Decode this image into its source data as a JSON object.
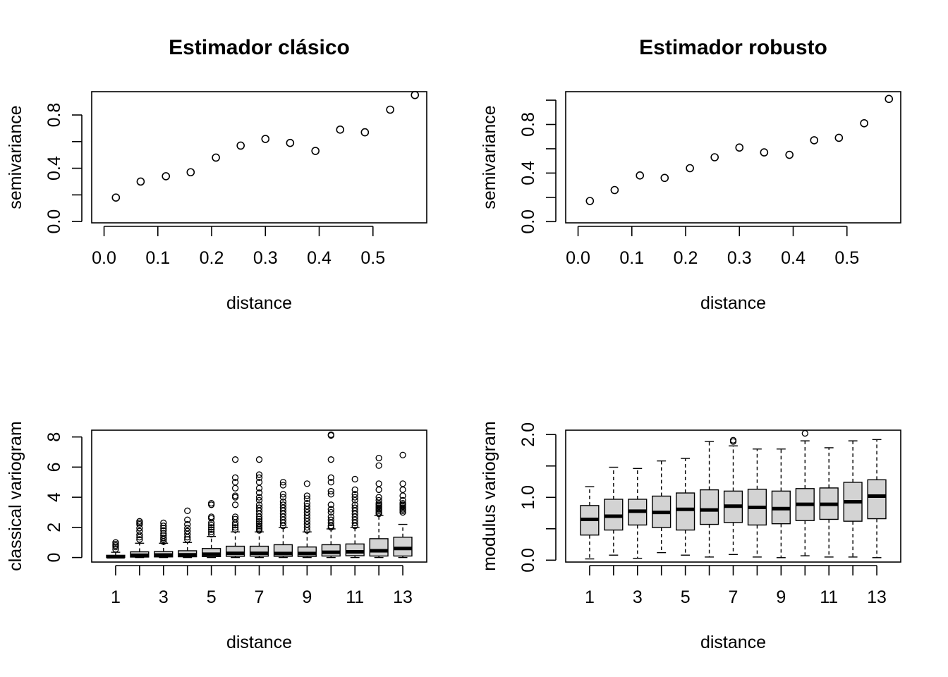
{
  "chart_data": [
    {
      "type": "scatter",
      "title": "Estimador clásico",
      "xlabel": "distance",
      "ylabel": "semivariance",
      "xlim": [
        -0.023,
        0.6
      ],
      "ylim": [
        -0.01,
        0.975
      ],
      "x_ticks": [
        0.0,
        0.1,
        0.2,
        0.3,
        0.4,
        0.5
      ],
      "y_ticks": [
        0.0,
        0.2,
        0.4,
        0.6,
        0.8
      ],
      "y_tick_labels": [
        "0.0",
        "",
        "0.4",
        "",
        "0.8"
      ],
      "x": [
        0.022,
        0.068,
        0.115,
        0.161,
        0.208,
        0.254,
        0.3,
        0.346,
        0.393,
        0.439,
        0.485,
        0.532,
        0.578
      ],
      "y": [
        0.18,
        0.3,
        0.34,
        0.37,
        0.48,
        0.57,
        0.62,
        0.59,
        0.53,
        0.69,
        0.67,
        0.84,
        0.95
      ]
    },
    {
      "type": "scatter",
      "title": "Estimador robusto",
      "xlabel": "distance",
      "ylabel": "semivariance",
      "xlim": [
        -0.023,
        0.6
      ],
      "ylim": [
        -0.01,
        1.07
      ],
      "x_ticks": [
        0.0,
        0.1,
        0.2,
        0.3,
        0.4,
        0.5
      ],
      "y_ticks": [
        0.0,
        0.2,
        0.4,
        0.6,
        0.8,
        1.0
      ],
      "y_tick_labels": [
        "0.0",
        "",
        "0.4",
        "",
        "0.8",
        ""
      ],
      "x": [
        0.022,
        0.068,
        0.115,
        0.161,
        0.208,
        0.254,
        0.3,
        0.346,
        0.393,
        0.439,
        0.485,
        0.532,
        0.578
      ],
      "y": [
        0.17,
        0.26,
        0.38,
        0.36,
        0.44,
        0.53,
        0.61,
        0.57,
        0.55,
        0.67,
        0.69,
        0.81,
        1.01
      ]
    },
    {
      "type": "boxplot",
      "title": "",
      "xlabel": "distance",
      "ylabel": "classical variogram",
      "xlim": [
        0,
        14
      ],
      "ylim": [
        -0.3,
        8.45
      ],
      "x_tick_labels": [
        "1",
        "3",
        "5",
        "7",
        "9",
        "11",
        "13"
      ],
      "y_ticks": [
        0,
        2,
        4,
        6,
        8
      ],
      "boxes": [
        {
          "x": 1,
          "q1": 0.01,
          "med": 0.05,
          "q3": 0.15,
          "lo": 0.0,
          "hi": 0.35,
          "outliers": [
            0.55,
            0.7,
            0.8,
            0.9,
            1.0
          ]
        },
        {
          "x": 2,
          "q1": 0.03,
          "med": 0.15,
          "q3": 0.38,
          "lo": 0.0,
          "hi": 0.95,
          "outliers": [
            1.2,
            1.35,
            1.5,
            1.75,
            1.95,
            2.2,
            2.3,
            2.4
          ]
        },
        {
          "x": 3,
          "q1": 0.04,
          "med": 0.17,
          "q3": 0.4,
          "lo": 0.0,
          "hi": 0.95,
          "outliers": [
            1.05,
            1.2,
            1.3,
            1.45,
            1.6,
            1.8,
            1.95,
            2.1,
            2.3
          ]
        },
        {
          "x": 4,
          "q1": 0.05,
          "med": 0.18,
          "q3": 0.45,
          "lo": 0.0,
          "hi": 1.0,
          "outliers": [
            1.2,
            1.35,
            1.55,
            1.75,
            1.95,
            2.2,
            2.5,
            3.1
          ]
        },
        {
          "x": 5,
          "q1": 0.06,
          "med": 0.22,
          "q3": 0.6,
          "lo": 0.0,
          "hi": 1.4,
          "outliers": [
            1.55,
            1.7,
            1.85,
            2.0,
            2.15,
            2.3,
            2.6,
            2.7,
            3.5,
            3.6
          ]
        },
        {
          "x": 6,
          "q1": 0.08,
          "med": 0.28,
          "q3": 0.75,
          "lo": 0.0,
          "hi": 1.7,
          "outliers": [
            1.85,
            2.0,
            2.15,
            2.3,
            2.55,
            2.7,
            3.5,
            4.0,
            4.1,
            4.6,
            5.0,
            5.3,
            6.5
          ]
        },
        {
          "x": 7,
          "q1": 0.09,
          "med": 0.28,
          "q3": 0.75,
          "lo": 0.0,
          "hi": 1.7,
          "outliers": [
            1.8,
            1.9,
            2.0,
            2.1,
            2.25,
            2.4,
            2.55,
            2.7,
            2.9,
            3.1,
            3.3,
            3.5,
            3.8,
            4.0,
            4.3,
            4.6,
            5.0,
            5.3,
            5.5,
            6.5
          ]
        },
        {
          "x": 8,
          "q1": 0.08,
          "med": 0.27,
          "q3": 0.85,
          "lo": 0.0,
          "hi": 2.0,
          "outliers": [
            2.1,
            2.3,
            2.5,
            2.7,
            2.9,
            3.1,
            3.3,
            3.5,
            3.7,
            4.0,
            4.2,
            4.8,
            5.0
          ]
        },
        {
          "x": 9,
          "q1": 0.07,
          "med": 0.27,
          "q3": 0.7,
          "lo": 0.0,
          "hi": 1.7,
          "outliers": [
            1.8,
            2.0,
            2.2,
            2.4,
            2.6,
            2.8,
            3.0,
            3.2,
            3.4,
            3.6,
            3.9,
            4.1,
            4.9
          ]
        },
        {
          "x": 10,
          "q1": 0.1,
          "med": 0.35,
          "q3": 0.85,
          "lo": 0.0,
          "hi": 1.9,
          "outliers": [
            2.0,
            2.1,
            2.3,
            2.5,
            2.7,
            3.0,
            3.2,
            3.5,
            4.2,
            4.4,
            5.0,
            5.3,
            6.5,
            8.1,
            8.15
          ]
        },
        {
          "x": 11,
          "q1": 0.12,
          "med": 0.38,
          "q3": 0.9,
          "lo": 0.0,
          "hi": 2.0,
          "outliers": [
            2.1,
            2.3,
            2.5,
            2.7,
            2.9,
            3.1,
            3.3,
            3.5,
            3.8,
            4.0,
            4.2,
            4.5,
            5.2
          ]
        },
        {
          "x": 12,
          "q1": 0.1,
          "med": 0.45,
          "q3": 1.25,
          "lo": 0.0,
          "hi": 2.8,
          "outliers": [
            2.9,
            3.0,
            3.1,
            3.2,
            3.3,
            3.4,
            3.5,
            3.6,
            3.8,
            4.0,
            4.5,
            4.9,
            6.1,
            6.6
          ]
        },
        {
          "x": 13,
          "q1": 0.1,
          "med": 0.6,
          "q3": 1.35,
          "lo": 0.0,
          "hi": 2.2,
          "outliers": [
            3.0,
            3.1,
            3.2,
            3.3,
            3.4,
            3.5,
            3.6,
            3.8,
            4.1,
            4.5,
            4.9,
            6.8
          ]
        }
      ]
    },
    {
      "type": "boxplot",
      "title": "",
      "xlabel": "distance",
      "ylabel": "modulus variogram",
      "xlim": [
        0,
        14
      ],
      "ylim": [
        -0.03,
        2.07
      ],
      "x_tick_labels": [
        "1",
        "3",
        "5",
        "7",
        "9",
        "11",
        "13"
      ],
      "y_ticks": [
        0.0,
        0.5,
        1.0,
        1.5,
        2.0
      ],
      "y_tick_labels": [
        "0.0",
        "",
        "1.0",
        "",
        "2.0"
      ],
      "boxes": [
        {
          "x": 1,
          "q1": 0.4,
          "med": 0.65,
          "q3": 0.87,
          "lo": 0.02,
          "hi": 1.17,
          "outliers": []
        },
        {
          "x": 2,
          "q1": 0.48,
          "med": 0.7,
          "q3": 0.97,
          "lo": 0.08,
          "hi": 1.48,
          "outliers": []
        },
        {
          "x": 3,
          "q1": 0.56,
          "med": 0.78,
          "q3": 0.97,
          "lo": 0.03,
          "hi": 1.46,
          "outliers": []
        },
        {
          "x": 4,
          "q1": 0.52,
          "med": 0.76,
          "q3": 1.02,
          "lo": 0.12,
          "hi": 1.58,
          "outliers": []
        },
        {
          "x": 5,
          "q1": 0.48,
          "med": 0.81,
          "q3": 1.07,
          "lo": 0.08,
          "hi": 1.62,
          "outliers": []
        },
        {
          "x": 6,
          "q1": 0.57,
          "med": 0.8,
          "q3": 1.12,
          "lo": 0.05,
          "hi": 1.89,
          "outliers": []
        },
        {
          "x": 7,
          "q1": 0.6,
          "med": 0.86,
          "q3": 1.1,
          "lo": 0.09,
          "hi": 1.82,
          "outliers": [
            1.89,
            1.91
          ]
        },
        {
          "x": 8,
          "q1": 0.56,
          "med": 0.84,
          "q3": 1.13,
          "lo": 0.05,
          "hi": 1.77,
          "outliers": []
        },
        {
          "x": 9,
          "q1": 0.58,
          "med": 0.82,
          "q3": 1.1,
          "lo": 0.04,
          "hi": 1.77,
          "outliers": []
        },
        {
          "x": 10,
          "q1": 0.63,
          "med": 0.89,
          "q3": 1.14,
          "lo": 0.07,
          "hi": 1.9,
          "outliers": [
            2.02
          ]
        },
        {
          "x": 11,
          "q1": 0.65,
          "med": 0.89,
          "q3": 1.15,
          "lo": 0.05,
          "hi": 1.79,
          "outliers": []
        },
        {
          "x": 12,
          "q1": 0.62,
          "med": 0.93,
          "q3": 1.24,
          "lo": 0.05,
          "hi": 1.9,
          "outliers": []
        },
        {
          "x": 13,
          "q1": 0.66,
          "med": 1.02,
          "q3": 1.28,
          "lo": 0.04,
          "hi": 1.92,
          "outliers": []
        }
      ]
    }
  ]
}
